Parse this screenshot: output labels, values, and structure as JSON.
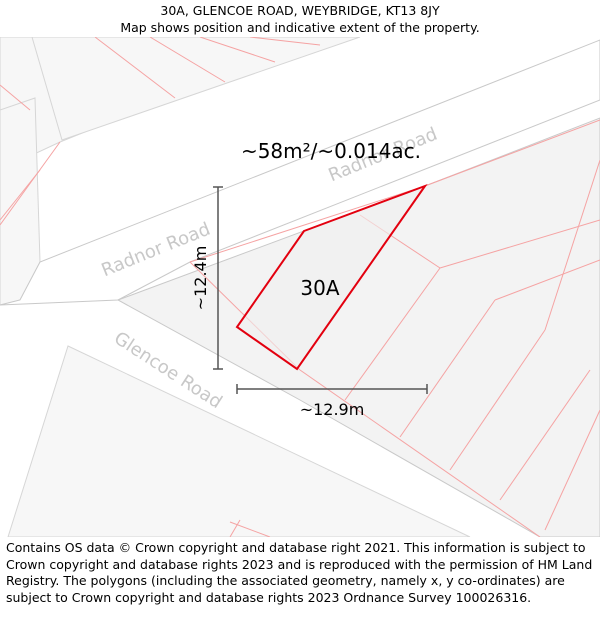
{
  "header": {
    "title": "30A, GLENCOE ROAD, WEYBRIDGE, KT13 8JY",
    "subtitle": "Map shows position and indicative extent of the property."
  },
  "map": {
    "area_label": "~58m²/~0.014ac.",
    "property_label": "30A",
    "height_label": "~12.4m",
    "width_label": "~12.9m",
    "roads": [
      {
        "name": "Radnor Road"
      },
      {
        "name": "Radnor Road"
      },
      {
        "name": "Glencoe Road"
      }
    ],
    "colors": {
      "boundary": "#e3000f",
      "parcel_lines": "#f5a3a3",
      "building_fill": "#f2f2f2",
      "road_label": "#c8c8c8",
      "measure_line": "#555555"
    }
  },
  "footer": {
    "copyright": "Contains OS data © Crown copyright and database right 2021. This information is subject to Crown copyright and database rights 2023 and is reproduced with the permission of HM Land Registry. The polygons (including the associated geometry, namely x, y co-ordinates) are subject to Crown copyright and database rights 2023 Ordnance Survey 100026316."
  }
}
